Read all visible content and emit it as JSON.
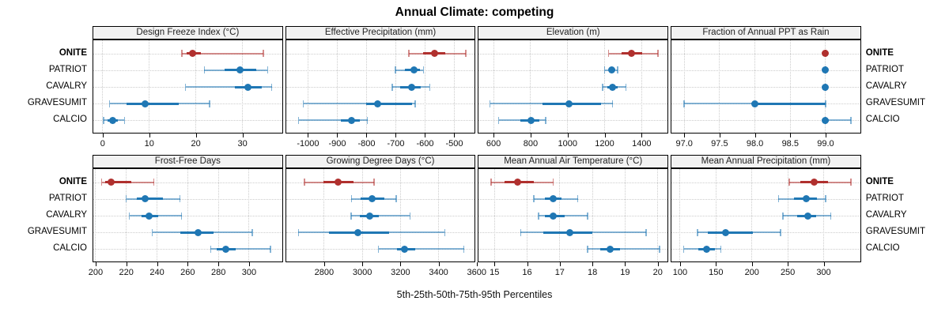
{
  "title": "Annual Climate: competing",
  "footer": "5th-25th-50th-75th-95th Percentiles",
  "colors": {
    "highlight": "#b0302e",
    "normal": "#1f77b4",
    "strip_bg": "#f2f2f2",
    "grid": "#cccccc",
    "panel_border": "#000000",
    "tick": "#000000"
  },
  "chart_data": {
    "type": "dotplot",
    "percentile_labels": [
      "5th",
      "25th",
      "50th",
      "75th",
      "95th"
    ],
    "rows": [
      "ONITE",
      "PATRIOT",
      "CAVALRY",
      "GRAVESUMIT",
      "CALCIO"
    ],
    "highlight_row": "ONITE",
    "layout": {
      "grid": "2x4",
      "x_axis_position": "below-each-row",
      "gridlines": "dotted"
    },
    "panels": [
      {
        "title": "Design Freeze Index (°C)",
        "xlim": [
          -2,
          38.5
        ],
        "ticks": [
          0,
          10,
          20,
          30
        ],
        "tick_labels": [
          "0",
          "10",
          "20",
          "30"
        ],
        "values_by_row": [
          [
            17.0,
            18.0,
            19.3,
            21.0,
            34.5
          ],
          [
            21.8,
            26.2,
            29.4,
            32.9,
            35.4
          ],
          [
            17.8,
            28.4,
            31.2,
            34.1,
            36.3
          ],
          [
            1.5,
            5.1,
            9.1,
            16.4,
            22.9
          ],
          [
            0.2,
            1.0,
            2.2,
            3.3,
            4.7
          ]
        ]
      },
      {
        "title": "Effective Precipitation (mm)",
        "xlim": [
          -1075,
          -430
        ],
        "ticks": [
          -1000,
          -900,
          -800,
          -700,
          -600,
          -500
        ],
        "tick_labels": [
          "-1000",
          "-900",
          "-800",
          "-700",
          "-600",
          "-500"
        ],
        "values_by_row": [
          [
            -655,
            -606,
            -568,
            -531,
            -461
          ],
          [
            -701,
            -668,
            -639,
            -617,
            -606
          ],
          [
            -712,
            -685,
            -646,
            -615,
            -584
          ],
          [
            -1016,
            -800,
            -762,
            -645,
            -634
          ],
          [
            -1032,
            -888,
            -850,
            -822,
            -797
          ]
        ]
      },
      {
        "title": "Elevation (m)",
        "xlim": [
          520,
          1540
        ],
        "ticks": [
          600,
          800,
          1000,
          1200,
          1400
        ],
        "tick_labels": [
          "600",
          "800",
          "1000",
          "1200",
          "1400"
        ],
        "values_by_row": [
          [
            1222,
            1292,
            1345,
            1404,
            1489
          ],
          [
            1200,
            1222,
            1238,
            1256,
            1271
          ],
          [
            1189,
            1214,
            1241,
            1271,
            1316
          ],
          [
            581,
            863,
            1006,
            1179,
            1243
          ],
          [
            628,
            743,
            804,
            849,
            881
          ]
        ]
      },
      {
        "title": "Fraction of Annual PPT as Rain",
        "xlim": [
          96.82,
          99.49
        ],
        "ticks": [
          97.0,
          97.5,
          98.0,
          98.5,
          99.0
        ],
        "tick_labels": [
          "97.0",
          "97.5",
          "98.0",
          "98.5",
          "99.0"
        ],
        "values_by_row": [
          [
            99,
            99,
            99,
            99,
            99
          ],
          [
            99,
            99,
            99,
            99,
            99
          ],
          [
            99,
            99,
            99,
            99,
            99
          ],
          [
            97,
            98,
            98,
            99,
            99
          ],
          [
            99,
            99,
            99,
            99.05,
            99.36
          ]
        ]
      },
      {
        "title": "Frost-Free Days",
        "xlim": [
          198.5,
          321.5
        ],
        "ticks": [
          200,
          220,
          240,
          260,
          280,
          300
        ],
        "tick_labels": [
          "200",
          "220",
          "240",
          "260",
          "280",
          "300"
        ],
        "values_by_row": [
          [
            204,
            206,
            210,
            223,
            238
          ],
          [
            220,
            227,
            232,
            244,
            255
          ],
          [
            222,
            230,
            235,
            241,
            256
          ],
          [
            237,
            255,
            267,
            277,
            302
          ],
          [
            275,
            279,
            285,
            291,
            314
          ]
        ]
      },
      {
        "title": "Growing Degree Days (°C)",
        "xlim": [
          2600,
          3590
        ],
        "ticks": [
          2800,
          3000,
          3200,
          3400,
          3600
        ],
        "tick_labels": [
          "2800",
          "3000",
          "3200",
          "3400",
          "3600"
        ],
        "values_by_row": [
          [
            2696,
            2797,
            2872,
            2953,
            3061
          ],
          [
            2943,
            2993,
            3051,
            3115,
            3178
          ],
          [
            2941,
            2986,
            3038,
            3088,
            3250
          ],
          [
            2665,
            2824,
            2977,
            3142,
            3432
          ],
          [
            3085,
            3183,
            3223,
            3277,
            3533
          ]
        ]
      },
      {
        "title": "Mean Annual Air Temperature (°C)",
        "xlim": [
          14.52,
          20.3
        ],
        "ticks": [
          15,
          16,
          17,
          18,
          19,
          20
        ],
        "tick_labels": [
          "15",
          "16",
          "17",
          "18",
          "19",
          "20"
        ],
        "values_by_row": [
          [
            14.9,
            15.3,
            15.7,
            16.2,
            16.8
          ],
          [
            16.2,
            16.55,
            16.8,
            17.05,
            17.55
          ],
          [
            16.35,
            16.55,
            16.8,
            17.15,
            17.85
          ],
          [
            15.8,
            16.5,
            17.3,
            18.0,
            19.65
          ],
          [
            17.85,
            18.25,
            18.55,
            18.85,
            20.05
          ]
        ]
      },
      {
        "title": "Mean Annual Precipitation (mm)",
        "xlim": [
          88,
          351
        ],
        "ticks": [
          100,
          150,
          200,
          250,
          300
        ],
        "tick_labels": [
          "100",
          "150",
          "200",
          "250",
          "300"
        ],
        "values_by_row": [
          [
            252,
            268,
            287,
            306,
            338
          ],
          [
            237,
            259,
            276,
            291,
            303
          ],
          [
            243,
            263,
            278,
            290,
            310
          ],
          [
            124,
            139,
            163,
            201,
            240
          ],
          [
            105,
            125,
            137,
            149,
            157
          ]
        ]
      }
    ]
  }
}
